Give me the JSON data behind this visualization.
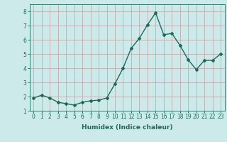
{
  "x": [
    0,
    1,
    2,
    3,
    4,
    5,
    6,
    7,
    8,
    9,
    10,
    11,
    12,
    13,
    14,
    15,
    16,
    17,
    18,
    19,
    20,
    21,
    22,
    23
  ],
  "y": [
    1.9,
    2.1,
    1.9,
    1.6,
    1.5,
    1.4,
    1.6,
    1.7,
    1.75,
    1.9,
    2.9,
    4.0,
    5.4,
    6.1,
    7.05,
    7.9,
    6.35,
    6.45,
    5.6,
    4.6,
    3.9,
    4.55,
    4.55,
    5.0
  ],
  "line_color": "#1a6b5a",
  "marker": "D",
  "marker_size": 2.0,
  "bg_color": "#cceaea",
  "grid_color": "#c0a0a0",
  "xlabel": "Humidex (Indice chaleur)",
  "xlim": [
    -0.5,
    23.5
  ],
  "ylim": [
    1.0,
    8.5
  ],
  "yticks": [
    1,
    2,
    3,
    4,
    5,
    6,
    7,
    8
  ],
  "xticks": [
    0,
    1,
    2,
    3,
    4,
    5,
    6,
    7,
    8,
    9,
    10,
    11,
    12,
    13,
    14,
    15,
    16,
    17,
    18,
    19,
    20,
    21,
    22,
    23
  ],
  "xlabel_fontsize": 6.5,
  "tick_fontsize": 5.5,
  "linewidth": 1.0
}
